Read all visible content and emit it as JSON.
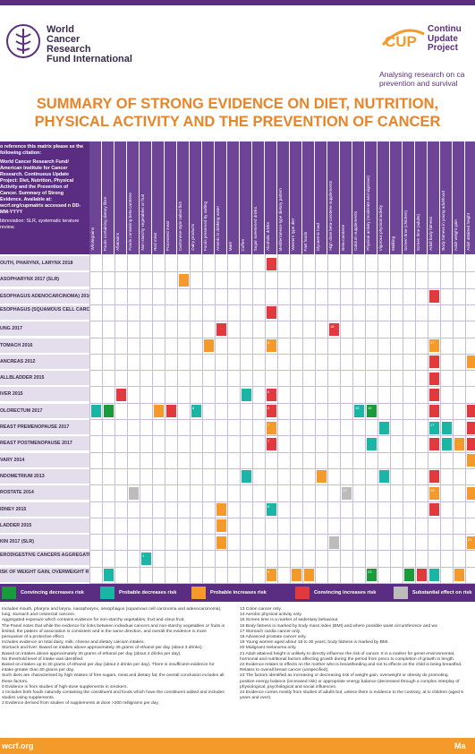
{
  "header": {
    "org_line1": "World",
    "org_line2": "Cancer",
    "org_line3": "Research",
    "org_line4": "Fund International",
    "cup_badge": "CUP",
    "cup_line1": "Continu",
    "cup_line2": "Update",
    "cup_line3": "Project",
    "tagline_line1": "Analysing research on ca",
    "tagline_line2": "prevention and survival"
  },
  "title_line1": "SUMMARY OF STRONG EVIDENCE ON DIET, NUTRITION,",
  "title_line2": "PHYSICAL ACTIVITY AND THE PREVENTION OF CANCER",
  "citation": {
    "p1": "o reference this matrix please se the following citation:",
    "p2": "World Cancer Research Fund/ American Institute for Cancer Research. Continuous Update Project: Diet, Nutrition, Physical Activity and the Prevention of Cancer. Summary of Strong Evidence. Available at: wcrf.org/cupmatrix accessed n DD-MM-YYYY",
    "p3": "bbreviation: SLR, systematic terature review."
  },
  "columns": [
    "Wholegrains",
    "Foods containing dietary fibre",
    "Aflatoxins",
    "Foods containing beta-carotene",
    "Non-starchy vegetables or fruit",
    "Red meat",
    "Processed meat",
    "Cantonese-style salted fish",
    "Dairy products",
    "Foods preserved by salting",
    "Arsenic in drinking water",
    "Maté",
    "Coffee",
    "Sugar sweetened drinks",
    "Alcoholic drinks",
    "Mediterranean-type dietary pattern",
    "Western type diet",
    "Fast foods",
    "Glycaemic load",
    "High dose beta-carotene supplements",
    "Beta-carotene",
    "Calcium supplements",
    "Physical activity (moderate and vigorous)",
    "Vigorous physical activity",
    "Walking",
    "Screen time (children)",
    "Screen time (adults)",
    "Adult body fatness",
    "Body fatness in young adulthood",
    "Adult weight gain",
    "Adult attained height"
  ],
  "rows": [
    "OUTH, PHARYNX, LARYNX 2018",
    "ASOPHARYNX 2017 (SLR)",
    "ESOPHAGUS ADENOCARCINOMA) 2016",
    "ESOPHAGUS (SQUAMOUS CELL CARCINOMA) 2016",
    "UNG 2017",
    "TOMACH 2016",
    "ANCREAS 2012",
    "ALLBLADDER 2015",
    "IVER 2015",
    "OLORECTUM 2017",
    "REAST PREMENOPAUSE 2017",
    "REAST POSTMENOPAUSE 2017",
    "VARY 2014",
    "NDOMETRIUM 2013",
    "ROSTATE 2014",
    "IDNEY 2015",
    "LADDER 2015",
    "KIN 2017 (SLR)",
    "ERODIGESTIVE CANCERS AGGREGATED) 2016-2018",
    "ISK OF WEIGHT GAIN, OVERWEIGHT R OBESITY 2018"
  ],
  "colors": {
    "convincing_decreases": "#1a9a3a",
    "probable_decreases": "#1bb5a5",
    "probable_increases": "#f39a2b",
    "convincing_increases": "#e03a3e",
    "substantial_effect": "#bcbcbc"
  },
  "cells": [
    {
      "r": 0,
      "c": 14,
      "k": "convincing_increases"
    },
    {
      "r": 1,
      "c": 7,
      "k": "probable_increases"
    },
    {
      "r": 2,
      "c": 27,
      "k": "convincing_increases"
    },
    {
      "r": 3,
      "c": 14,
      "k": "convincing_increases"
    },
    {
      "r": 4,
      "c": 10,
      "k": "convincing_increases"
    },
    {
      "r": 4,
      "c": 19,
      "k": "convincing_increases",
      "n": "18"
    },
    {
      "r": 5,
      "c": 9,
      "k": "probable_increases"
    },
    {
      "r": 5,
      "c": 14,
      "k": "probable_increases",
      "n": "6"
    },
    {
      "r": 5,
      "c": 27,
      "k": "probable_increases",
      "n": "17"
    },
    {
      "r": 6,
      "c": 27,
      "k": "convincing_increases"
    },
    {
      "r": 6,
      "c": 30,
      "k": "probable_increases"
    },
    {
      "r": 7,
      "c": 27,
      "k": "convincing_increases"
    },
    {
      "r": 8,
      "c": 2,
      "k": "convincing_increases"
    },
    {
      "r": 8,
      "c": 12,
      "k": "probable_decreases"
    },
    {
      "r": 8,
      "c": 14,
      "k": "convincing_increases",
      "n": "6"
    },
    {
      "r": 8,
      "c": 27,
      "k": "convincing_increases"
    },
    {
      "r": 9,
      "c": 0,
      "k": "probable_decreases"
    },
    {
      "r": 9,
      "c": 1,
      "k": "convincing_decreases"
    },
    {
      "r": 9,
      "c": 5,
      "k": "probable_increases"
    },
    {
      "r": 9,
      "c": 6,
      "k": "convincing_increases"
    },
    {
      "r": 9,
      "c": 8,
      "k": "probable_decreases",
      "n": "6"
    },
    {
      "r": 9,
      "c": 14,
      "k": "convincing_increases",
      "n": "6"
    },
    {
      "r": 9,
      "c": 21,
      "k": "probable_decreases",
      "n": "15"
    },
    {
      "r": 9,
      "c": 22,
      "k": "convincing_decreases",
      "n": "15"
    },
    {
      "r": 9,
      "c": 27,
      "k": "convincing_increases"
    },
    {
      "r": 9,
      "c": 30,
      "k": "convincing_increases"
    },
    {
      "r": 10,
      "c": 14,
      "k": "probable_increases",
      "n": "7"
    },
    {
      "r": 10,
      "c": 23,
      "k": "probable_decreases"
    },
    {
      "r": 10,
      "c": 27,
      "k": "probable_decreases",
      "n": "17"
    },
    {
      "r": 10,
      "c": 28,
      "k": "probable_decreases"
    },
    {
      "r": 10,
      "c": 30,
      "k": "convincing_increases"
    },
    {
      "r": 11,
      "c": 14,
      "k": "convincing_increases",
      "n": "7"
    },
    {
      "r": 11,
      "c": 22,
      "k": "probable_decreases"
    },
    {
      "r": 11,
      "c": 27,
      "k": "convincing_increases"
    },
    {
      "r": 11,
      "c": 28,
      "k": "probable_decreases"
    },
    {
      "r": 11,
      "c": 29,
      "k": "probable_increases"
    },
    {
      "r": 11,
      "c": 30,
      "k": "convincing_increases"
    },
    {
      "r": 12,
      "c": 30,
      "k": "probable_increases"
    },
    {
      "r": 13,
      "c": 12,
      "k": "probable_decreases"
    },
    {
      "r": 13,
      "c": 18,
      "k": "probable_increases"
    },
    {
      "r": 13,
      "c": 23,
      "k": "probable_decreases"
    },
    {
      "r": 13,
      "c": 27,
      "k": "convincing_increases"
    },
    {
      "r": 14,
      "c": 3,
      "k": "substantial_effect"
    },
    {
      "r": 14,
      "c": 20,
      "k": "substantial_effect",
      "n": "12"
    },
    {
      "r": 14,
      "c": 27,
      "k": "probable_increases",
      "n": "18"
    },
    {
      "r": 14,
      "c": 30,
      "k": "probable_increases"
    },
    {
      "r": 15,
      "c": 10,
      "k": "probable_increases"
    },
    {
      "r": 15,
      "c": 14,
      "k": "probable_decreases",
      "n": "8"
    },
    {
      "r": 15,
      "c": 27,
      "k": "convincing_increases"
    },
    {
      "r": 16,
      "c": 10,
      "k": "probable_increases"
    },
    {
      "r": 17,
      "c": 10,
      "k": "probable_increases"
    },
    {
      "r": 17,
      "c": 19,
      "k": "substantial_effect"
    },
    {
      "r": 17,
      "c": 30,
      "k": "probable_increases",
      "n": "21"
    },
    {
      "r": 18,
      "c": 4,
      "k": "probable_decreases",
      "n": "1"
    },
    {
      "r": 19,
      "c": 1,
      "k": "probable_decreases"
    },
    {
      "r": 19,
      "c": 14,
      "k": "probable_increases",
      "n": "9"
    },
    {
      "r": 19,
      "c": 16,
      "k": "probable_increases"
    },
    {
      "r": 19,
      "c": 17,
      "k": "probable_increases"
    },
    {
      "r": 19,
      "c": 22,
      "k": "convincing_decreases",
      "n": "23"
    },
    {
      "r": 19,
      "c": 25,
      "k": "convincing_decreases"
    },
    {
      "r": 19,
      "c": 26,
      "k": "convincing_increases"
    },
    {
      "r": 19,
      "c": 27,
      "k": "probable_decreases"
    },
    {
      "r": 19,
      "c": 29,
      "k": "probable_increases"
    }
  ],
  "legend": {
    "convincing_decreases": "Convincing decreases risk",
    "probable_decreases": "Probable decreases risk",
    "probable_increases": "Probable increases risk",
    "convincing_increases": "Convincing increases risk",
    "substantial_effect": "Substantial effect on risk"
  },
  "notes_left": [
    "Includes mouth, pharynx and larynx, nasopharynx, oesophagus (squamous cell carcinoma and adenocarcinoma), lung, stomach and colorectal cancers.",
    "Aggregated exposure which contains evidence for non-starchy vegetables, fruit and citrus fruit.",
    "The Panel notes that while the evidence for links between individual cancers and non-starchy vegetables or fruits is limited, the pattern of association is consistent and in the same direction, and overall the evidence is more persuasive of a protective effect.",
    "Includes evidence on total dairy, milk, cheese and dietary calcium intakes.",
    "Stomach and liver: Based on intakes above approximately 45 grams of ethanol per day (about 3 drinks).",
    "Based on intakes above approximately 30 grams of ethanol per day (about 2 drinks per day).",
    "No threshold level of intake was identified.",
    "Based on intakes up to 30 grams of ethanol per day (about 2 drinks per day). There is insufficient evidence for intake greater than 30 grams per day.",
    "Such diets are characterised by high intakes of free sugars, meat and dietary fat; the overall conclusion includes all these factors.",
    "0  Evidence is from studies of high-dose supplements in smokers.",
    "1  Includes both foods naturally containing the constituent and foods which have the constituent added and includes studies using supplements.",
    "2  Evidence derived from studies of supplements at dose >200 milligrams per day."
  ],
  "notes_right": [
    "13  Colon cancer only.",
    "14  Aerobic physical activity only.",
    "15  Screen time is a marker of sedentary behaviour.",
    "16  Body fatness is marked by body mass index (BMI) and where possible waist circumference and wa",
    "17  Stomach cardia cancer only.",
    "18  Advanced prostate cancer only.",
    "19  Young women aged about 18 to 30 years; body fatness is marked by BMI.",
    "20  Malignant melanoma only.",
    "21  Adult attained height is unlikely to directly influence the risk of cancer. It is a marker for genet environmental, hormonal and nutritional factors affecting growth during the period from preco to completion of growth in length.",
    "22  Evidence relates to effects on the mother who is breastfeeding and not to effects on the child is being breastfed. Relates to overall breast cancer (unspecified).",
    "23  The factors identified as increasing or decreasing risk of weight gain, overweight or obesity do promoting positive energy balance (increased risk) or appropriate energy balance (decreased through a complex interplay of physiological, psychological and social influences.",
    "24  Evidence comes mostly from studies of adults but, unless there is evidence to the contrary, al to children (aged 5 years and over)."
  ],
  "footer": {
    "left": "wcrf.org",
    "right": "Ma"
  }
}
